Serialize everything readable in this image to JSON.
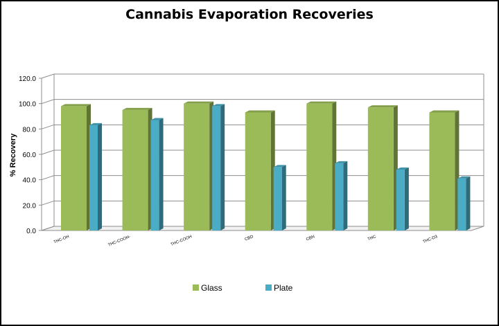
{
  "chart_data": {
    "type": "bar",
    "title": "Cannabis Evaporation Recoveries",
    "xlabel": "",
    "ylabel": "% Recovery",
    "ylim": [
      0,
      120
    ],
    "yticks": [
      "0.0",
      "20.0",
      "40.0",
      "60.0",
      "80.0",
      "100.0",
      "120.0"
    ],
    "grid": true,
    "legend_position": "bottom",
    "categories": [
      "THC-OH",
      "THC-COOH-",
      "THC-COOH",
      "CBD",
      "CBN",
      "THC",
      "THC-D3"
    ],
    "series": [
      {
        "name": "Glass",
        "color": "#9bbb59",
        "values": [
          98,
          95,
          100,
          93,
          100,
          97,
          93
        ]
      },
      {
        "name": "Plate",
        "color": "#4bacc6",
        "values": [
          83,
          87,
          98,
          50,
          53,
          48,
          41
        ]
      }
    ]
  }
}
